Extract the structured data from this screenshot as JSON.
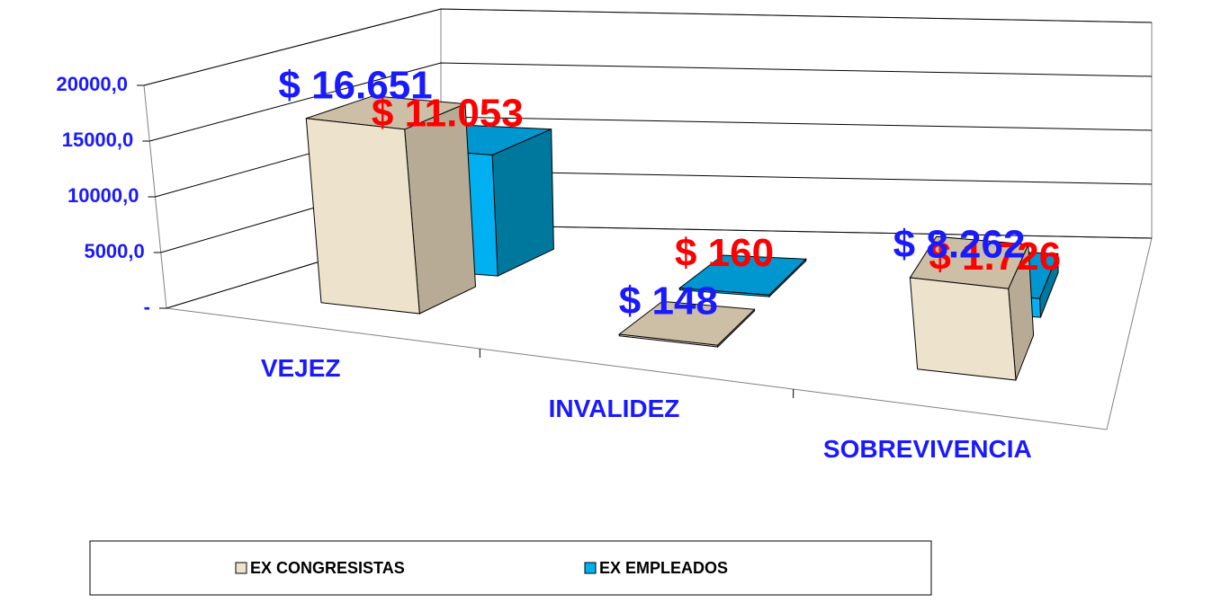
{
  "chart_data": {
    "type": "bar3d",
    "categories": [
      "VEJEZ",
      "INVALIDEZ",
      "SOBREVIVENCIA"
    ],
    "series": [
      {
        "name": "EX CONGRESISTAS",
        "color": "#ede3cc",
        "label_color": "#1a1aff",
        "values": [
          16651,
          148,
          8262
        ],
        "value_labels": [
          "$ 16.651",
          "$ 148",
          "$ 8.262"
        ]
      },
      {
        "name": "EX EMPLEADOS",
        "color": "#00b0f0",
        "label_color": "#ff0000",
        "values": [
          11053,
          160,
          1726
        ],
        "value_labels": [
          "$ 11.053",
          "$ 160",
          "$ 1.726"
        ]
      }
    ],
    "ylim": [
      0,
      20000
    ],
    "yticks": [
      {
        "value": 0,
        "label": "-"
      },
      {
        "value": 5000,
        "label": "5000,0"
      },
      {
        "value": 10000,
        "label": "10000,0"
      },
      {
        "value": 15000,
        "label": "15000,0"
      },
      {
        "value": 20000,
        "label": "20000,0"
      }
    ],
    "grid": true,
    "legend": "bottom"
  }
}
